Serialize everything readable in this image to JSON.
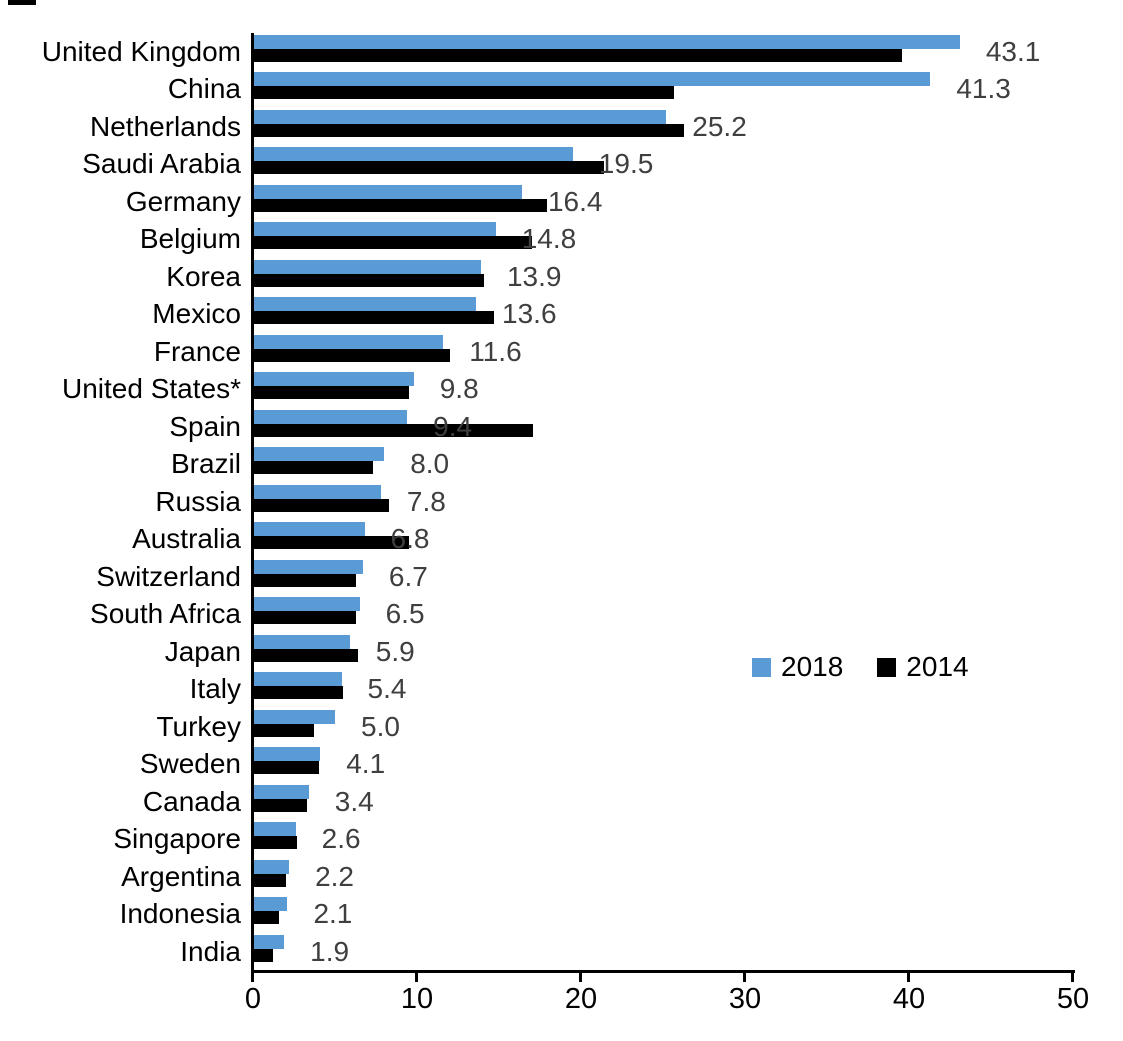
{
  "chart_data": {
    "type": "bar",
    "orientation": "horizontal",
    "title": "",
    "categories": [
      "United Kingdom",
      "China",
      "Netherlands",
      "Saudi Arabia",
      "Germany",
      "Belgium",
      "Korea",
      "Mexico",
      "France",
      "United States*",
      "Spain",
      "Brazil",
      "Russia",
      "Australia",
      "Switzerland",
      "South Africa",
      "Japan",
      "Italy",
      "Turkey",
      "Sweden",
      "Canada",
      "Singapore",
      "Argentina",
      "Indonesia",
      "India"
    ],
    "series": [
      {
        "name": "2018",
        "color": "#5B9BD5",
        "values": [
          43.1,
          41.3,
          25.2,
          19.5,
          16.4,
          14.8,
          13.9,
          13.6,
          11.6,
          9.8,
          9.4,
          8.0,
          7.8,
          6.8,
          6.7,
          6.5,
          5.9,
          5.4,
          5.0,
          4.1,
          3.4,
          2.6,
          2.2,
          2.1,
          1.9
        ]
      },
      {
        "name": "2014",
        "color": "#000000",
        "values": [
          39.6,
          25.7,
          26.3,
          21.4,
          17.9,
          17.0,
          14.1,
          14.7,
          12.0,
          9.5,
          17.1,
          7.3,
          8.3,
          9.5,
          6.3,
          6.3,
          6.4,
          5.5,
          3.7,
          4.0,
          3.3,
          2.7,
          2.0,
          1.6,
          1.2
        ]
      }
    ],
    "value_labels": [
      "43.1",
      "41.3",
      "25.2",
      "19.5",
      "16.4",
      "14.8",
      "13.9",
      "13.6",
      "11.6",
      "9.8",
      "9.4",
      "8.0",
      "7.8",
      "6.8",
      "6.7",
      "6.5",
      "5.9",
      "5.4",
      "5.0",
      "4.1",
      "3.4",
      "2.6",
      "2.2",
      "2.1",
      "1.9"
    ],
    "value_label_series": "2018",
    "xlim": [
      0,
      50
    ],
    "x_ticks": [
      "0",
      "10",
      "20",
      "30",
      "40",
      "50"
    ],
    "grid": false,
    "legend_position": "middle-right",
    "value_label_color": "#3F3F3F",
    "axis_color": "#000000"
  },
  "legend": {
    "item_2018": "2018",
    "item_2014": "2014"
  }
}
